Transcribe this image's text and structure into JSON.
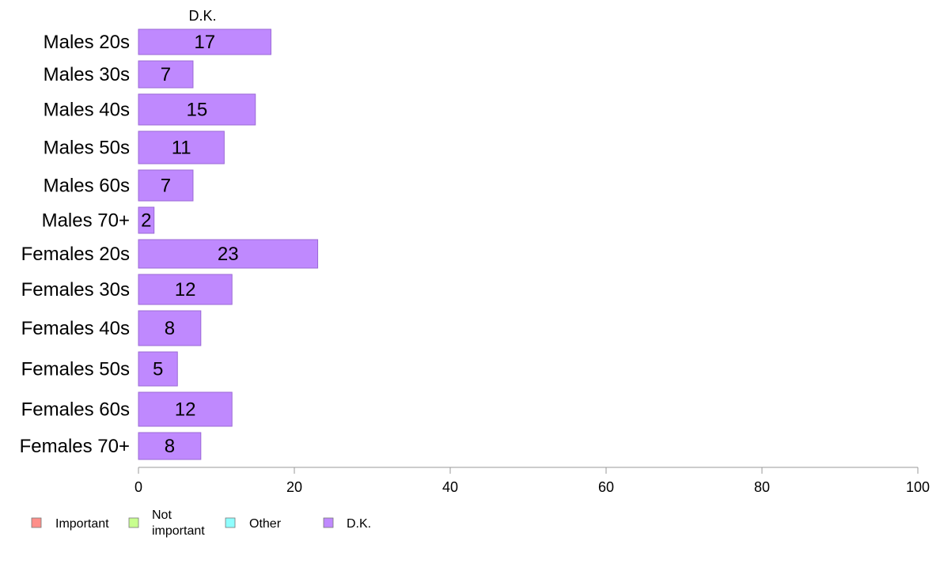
{
  "chart_data": {
    "type": "bar",
    "orientation": "horizontal",
    "column_title": "D.K.",
    "categories": [
      "Males 20s",
      "Males 30s",
      "Males 40s",
      "Males 50s",
      "Males 60s",
      "Males 70+",
      "Females 20s",
      "Females 30s",
      "Females 40s",
      "Females 50s",
      "Females 60s",
      "Females 70+"
    ],
    "series": [
      {
        "name": "D.K.",
        "values": [
          17,
          7,
          15,
          11,
          7,
          2,
          23,
          12,
          8,
          5,
          12,
          8
        ],
        "color": "#bf89fe"
      }
    ],
    "data_labels": [
      "17",
      "7",
      "15",
      "11",
      "7",
      "2",
      "23",
      "12",
      "8",
      "5",
      "12",
      "8"
    ],
    "x_ticks": [
      "0",
      "20",
      "40",
      "60",
      "80",
      "100"
    ],
    "xlim": [
      0,
      100
    ],
    "grid": false,
    "legend": {
      "placement": "bottom-left",
      "items": [
        {
          "label": "Important",
          "color": "#fe8f8a"
        },
        {
          "label": "Not\nimportant",
          "color": "#c8fe8f"
        },
        {
          "label": "Other",
          "color": "#8ffefe"
        },
        {
          "label": "D.K.",
          "color": "#bf89fe"
        }
      ]
    }
  }
}
